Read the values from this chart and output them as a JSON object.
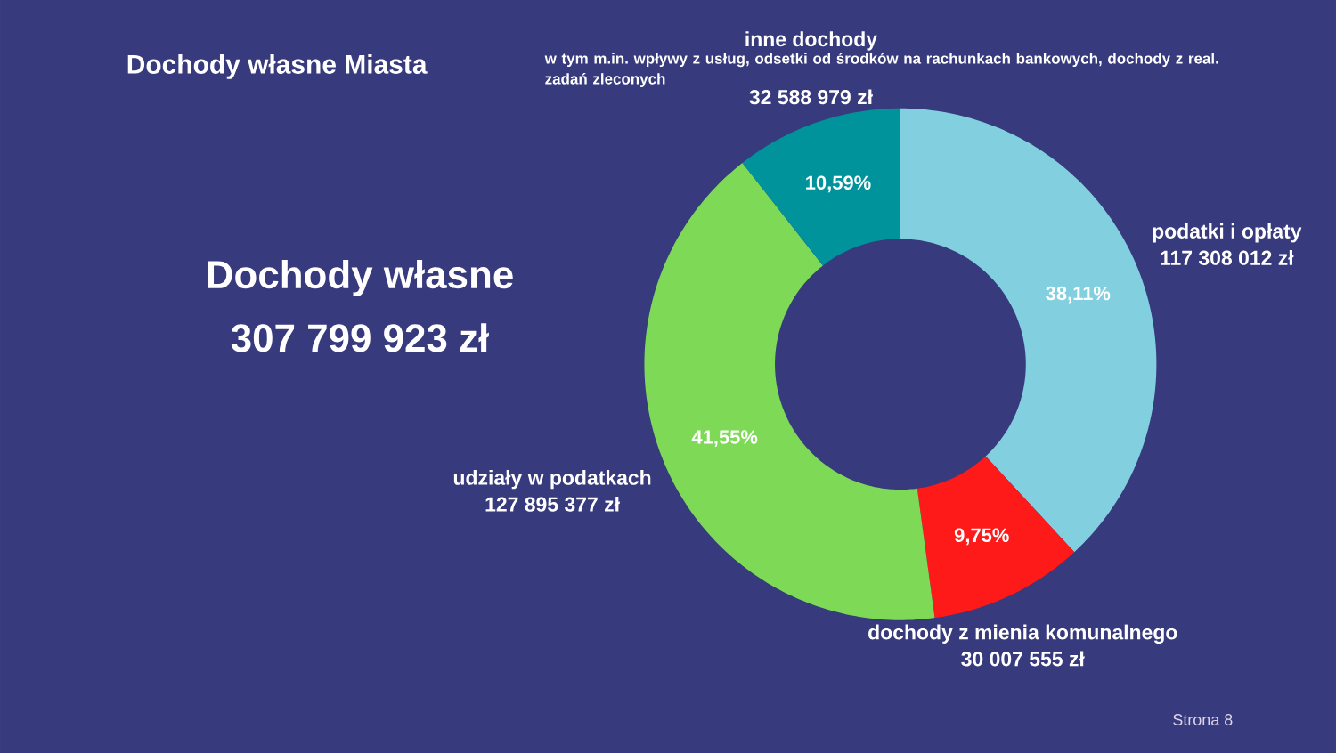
{
  "chart_data": {
    "type": "donut",
    "title": "Dochody własne Miasta",
    "categories": [
      "podatki i opłaty",
      "dochody z mienia komunalnego",
      "udziały w podatkach",
      "inne dochody"
    ],
    "values": [
      38.11,
      9.75,
      41.55,
      10.59
    ],
    "colors": [
      "#82cfe0",
      "#ff1a1a",
      "#7ed957",
      "#00939c"
    ],
    "value_labels": [
      "38,11%",
      "9,75%",
      "41,55%",
      "10,59%"
    ],
    "annotations": [
      "117 308 012 zł",
      "30 007 555 zł",
      "127 895 377 zł",
      "32 588 979 zł",
      "w tym m.in. wpływy z usług, odsetki od środków na rachunkach bankowych, dochody z real. zadań zleconych",
      "Dochody własne",
      "307 799 923 zł",
      "Strona 8"
    ]
  }
}
